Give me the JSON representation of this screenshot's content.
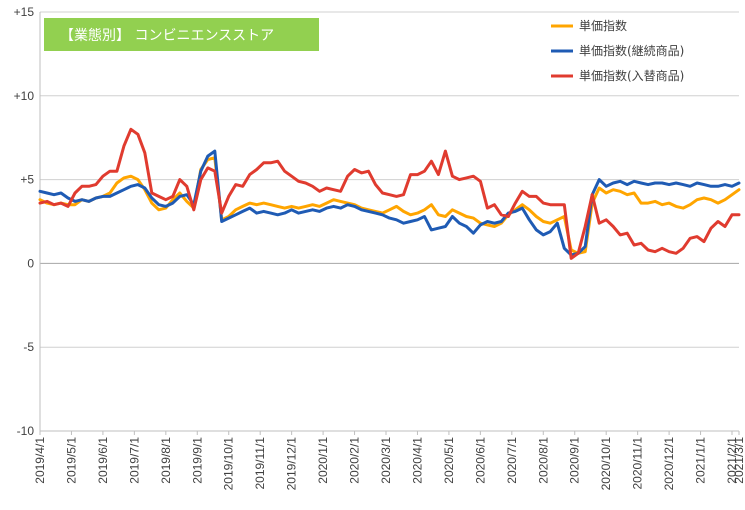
{
  "chart_data": {
    "type": "line",
    "title": "【業態別】 コンビニエンスストア",
    "title_box_color": "#92d050",
    "ylim": [
      -10,
      15
    ],
    "yticks": [
      {
        "value": 15,
        "label": "+15"
      },
      {
        "value": 10,
        "label": "+10"
      },
      {
        "value": 5,
        "label": "+5"
      },
      {
        "value": 0,
        "label": "0"
      },
      {
        "value": -5,
        "label": "-5"
      },
      {
        "value": -10,
        "label": "-10"
      }
    ],
    "xlim": [
      0,
      100
    ],
    "x_ticks": [
      {
        "index": 0,
        "label": "2019/4/1"
      },
      {
        "index": 4.5,
        "label": "2019/5/1"
      },
      {
        "index": 9,
        "label": "2019/6/1"
      },
      {
        "index": 13.5,
        "label": "2019/7/1"
      },
      {
        "index": 18,
        "label": "2019/8/1"
      },
      {
        "index": 22.5,
        "label": "2019/9/1"
      },
      {
        "index": 27,
        "label": "2019/10/1"
      },
      {
        "index": 31.5,
        "label": "2019/11/1"
      },
      {
        "index": 36,
        "label": "2019/12/1"
      },
      {
        "index": 40.5,
        "label": "2020/1/1"
      },
      {
        "index": 45,
        "label": "2020/2/1"
      },
      {
        "index": 49.5,
        "label": "2020/3/1"
      },
      {
        "index": 54,
        "label": "2020/4/1"
      },
      {
        "index": 58.5,
        "label": "2020/5/1"
      },
      {
        "index": 63,
        "label": "2020/6/1"
      },
      {
        "index": 67.5,
        "label": "2020/7/1"
      },
      {
        "index": 72,
        "label": "2020/8/1"
      },
      {
        "index": 76.5,
        "label": "2020/9/1"
      },
      {
        "index": 81,
        "label": "2020/10/1"
      },
      {
        "index": 85.5,
        "label": "2020/11/1"
      },
      {
        "index": 90,
        "label": "2020/12/1"
      },
      {
        "index": 94.5,
        "label": "2021/1/1"
      },
      {
        "index": 99,
        "label": "2021/2/1"
      },
      {
        "index": 100,
        "label": "2021/3/1"
      }
    ],
    "grid": "horizontal",
    "legend_position": "top-right",
    "series": [
      {
        "name": "単価指数",
        "color": "#ffa500",
        "values": [
          3.8,
          3.6,
          3.5,
          3.6,
          3.5,
          3.5,
          3.8,
          3.7,
          3.9,
          4.0,
          4.2,
          4.8,
          5.1,
          5.2,
          5.0,
          4.4,
          3.6,
          3.2,
          3.3,
          3.8,
          4.2,
          3.7,
          3.3,
          5.6,
          6.2,
          6.3,
          2.6,
          2.8,
          3.2,
          3.4,
          3.6,
          3.5,
          3.6,
          3.5,
          3.4,
          3.3,
          3.4,
          3.3,
          3.4,
          3.5,
          3.4,
          3.6,
          3.8,
          3.7,
          3.6,
          3.5,
          3.3,
          3.2,
          3.1,
          3.0,
          3.2,
          3.4,
          3.1,
          2.9,
          3.0,
          3.2,
          3.5,
          2.9,
          2.8,
          3.2,
          3.0,
          2.8,
          2.7,
          2.4,
          2.3,
          2.2,
          2.4,
          2.9,
          3.2,
          3.5,
          3.2,
          2.8,
          2.5,
          2.4,
          2.6,
          2.8,
          0.8,
          0.6,
          0.7,
          3.6,
          4.5,
          4.2,
          4.4,
          4.3,
          4.1,
          4.2,
          3.6,
          3.6,
          3.7,
          3.5,
          3.6,
          3.4,
          3.3,
          3.5,
          3.8,
          3.9,
          3.8,
          3.6,
          3.8,
          4.1,
          4.4
        ]
      },
      {
        "name": "単価指数(継続商品)",
        "color": "#1f5bb4",
        "values": [
          4.3,
          4.2,
          4.1,
          4.2,
          3.9,
          3.7,
          3.8,
          3.7,
          3.9,
          4.0,
          4.0,
          4.2,
          4.4,
          4.6,
          4.7,
          4.5,
          3.9,
          3.5,
          3.4,
          3.6,
          4.0,
          4.1,
          3.5,
          5.5,
          6.4,
          6.7,
          2.5,
          2.7,
          2.9,
          3.1,
          3.3,
          3.0,
          3.1,
          3.0,
          2.9,
          3.0,
          3.2,
          3.0,
          3.1,
          3.2,
          3.1,
          3.3,
          3.4,
          3.3,
          3.5,
          3.4,
          3.2,
          3.1,
          3.0,
          2.9,
          2.7,
          2.6,
          2.4,
          2.5,
          2.6,
          2.8,
          2.0,
          2.1,
          2.2,
          2.8,
          2.4,
          2.2,
          1.8,
          2.3,
          2.5,
          2.4,
          2.5,
          3.0,
          3.1,
          3.3,
          2.6,
          2.0,
          1.7,
          1.9,
          2.4,
          0.9,
          0.5,
          0.6,
          1.0,
          4.1,
          5.0,
          4.6,
          4.8,
          4.9,
          4.7,
          4.9,
          4.8,
          4.7,
          4.8,
          4.8,
          4.7,
          4.8,
          4.7,
          4.6,
          4.8,
          4.7,
          4.6,
          4.6,
          4.7,
          4.6,
          4.8
        ]
      },
      {
        "name": "単価指数(入替商品)",
        "color": "#e03b2f",
        "values": [
          3.6,
          3.7,
          3.5,
          3.6,
          3.4,
          4.2,
          4.6,
          4.6,
          4.7,
          5.2,
          5.5,
          5.5,
          7.0,
          8.0,
          7.7,
          6.6,
          4.2,
          4.0,
          3.8,
          4.0,
          5.0,
          4.6,
          3.2,
          5.0,
          5.7,
          5.5,
          3.0,
          4.0,
          4.7,
          4.6,
          5.3,
          5.6,
          6.0,
          6.0,
          6.1,
          5.5,
          5.2,
          4.9,
          4.8,
          4.6,
          4.3,
          4.5,
          4.4,
          4.3,
          5.2,
          5.6,
          5.4,
          5.5,
          4.7,
          4.2,
          4.1,
          4.0,
          4.1,
          5.3,
          5.3,
          5.5,
          6.1,
          5.3,
          6.7,
          5.2,
          5.0,
          5.1,
          5.2,
          4.9,
          3.3,
          3.5,
          2.9,
          2.8,
          3.6,
          4.3,
          4.0,
          4.0,
          3.6,
          3.5,
          3.5,
          3.5,
          0.3,
          0.6,
          2.2,
          4.1,
          2.4,
          2.6,
          2.2,
          1.7,
          1.8,
          1.1,
          1.2,
          0.8,
          0.7,
          0.9,
          0.7,
          0.6,
          0.9,
          1.5,
          1.6,
          1.3,
          2.1,
          2.5,
          2.2,
          2.9,
          2.9
        ]
      }
    ]
  }
}
